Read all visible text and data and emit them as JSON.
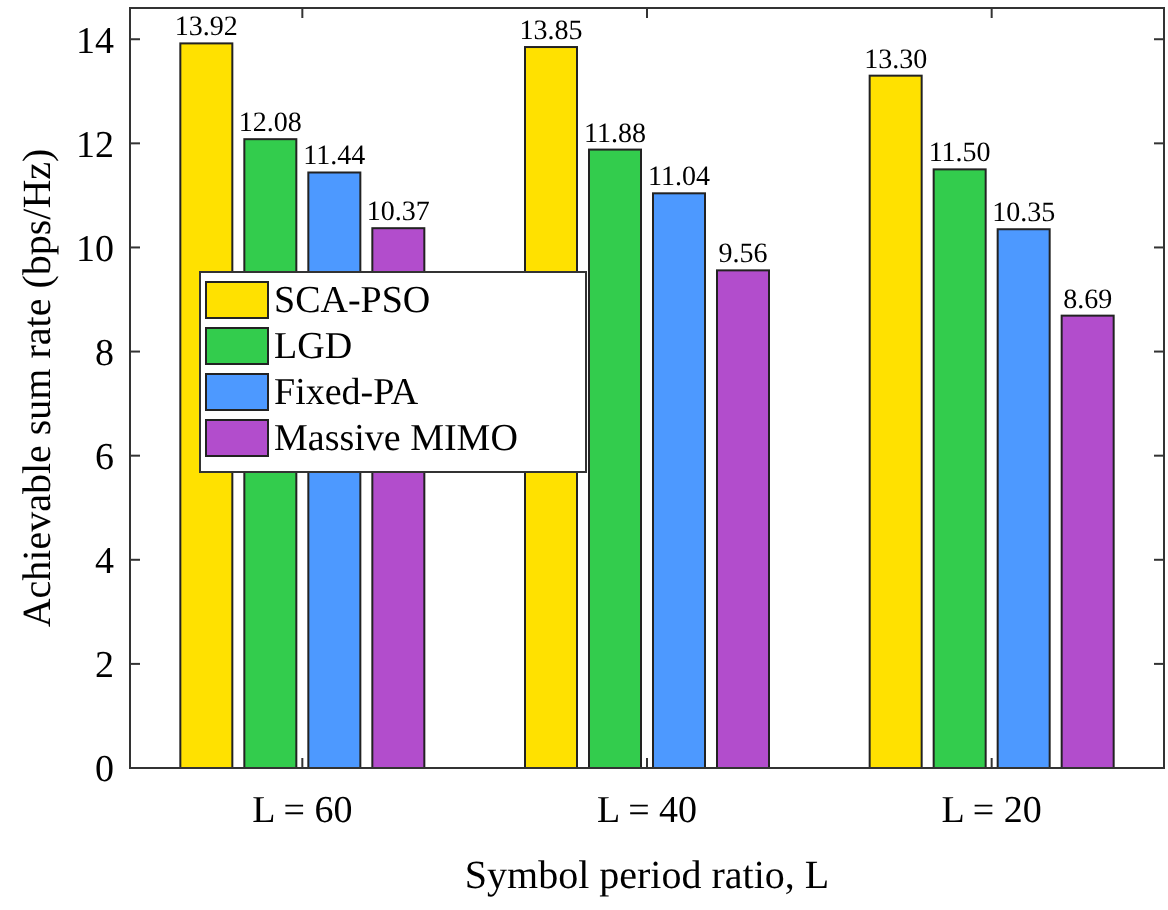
{
  "chart_data": {
    "type": "bar",
    "xlabel": "Symbol period ratio, L",
    "ylabel": "Achievable sum rate (bps/Hz)",
    "categories": [
      "L = 60",
      "L = 40",
      "L = 20"
    ],
    "series": [
      {
        "name": "SCA-PSO",
        "color": "#ffe100",
        "values": [
          13.92,
          13.85,
          13.3
        ],
        "value_labels": [
          "13.92",
          "13.85",
          "13.30"
        ]
      },
      {
        "name": "LGD",
        "color": "#33cc4d",
        "values": [
          12.08,
          11.88,
          11.5
        ],
        "value_labels": [
          "12.08",
          "11.88",
          "11.50"
        ]
      },
      {
        "name": "Fixed-PA",
        "color": "#4d99ff",
        "values": [
          11.44,
          11.04,
          10.35
        ],
        "value_labels": [
          "11.44",
          "11.04",
          "10.35"
        ]
      },
      {
        "name": "Massive MIMO",
        "color": "#b24dcc",
        "values": [
          10.37,
          9.56,
          8.69
        ],
        "value_labels": [
          "10.37",
          "9.56",
          "8.69"
        ]
      }
    ],
    "ylim": [
      0,
      14.6
    ],
    "yticks": [
      0,
      2,
      4,
      6,
      8,
      10,
      12,
      14
    ],
    "legend": "left"
  }
}
